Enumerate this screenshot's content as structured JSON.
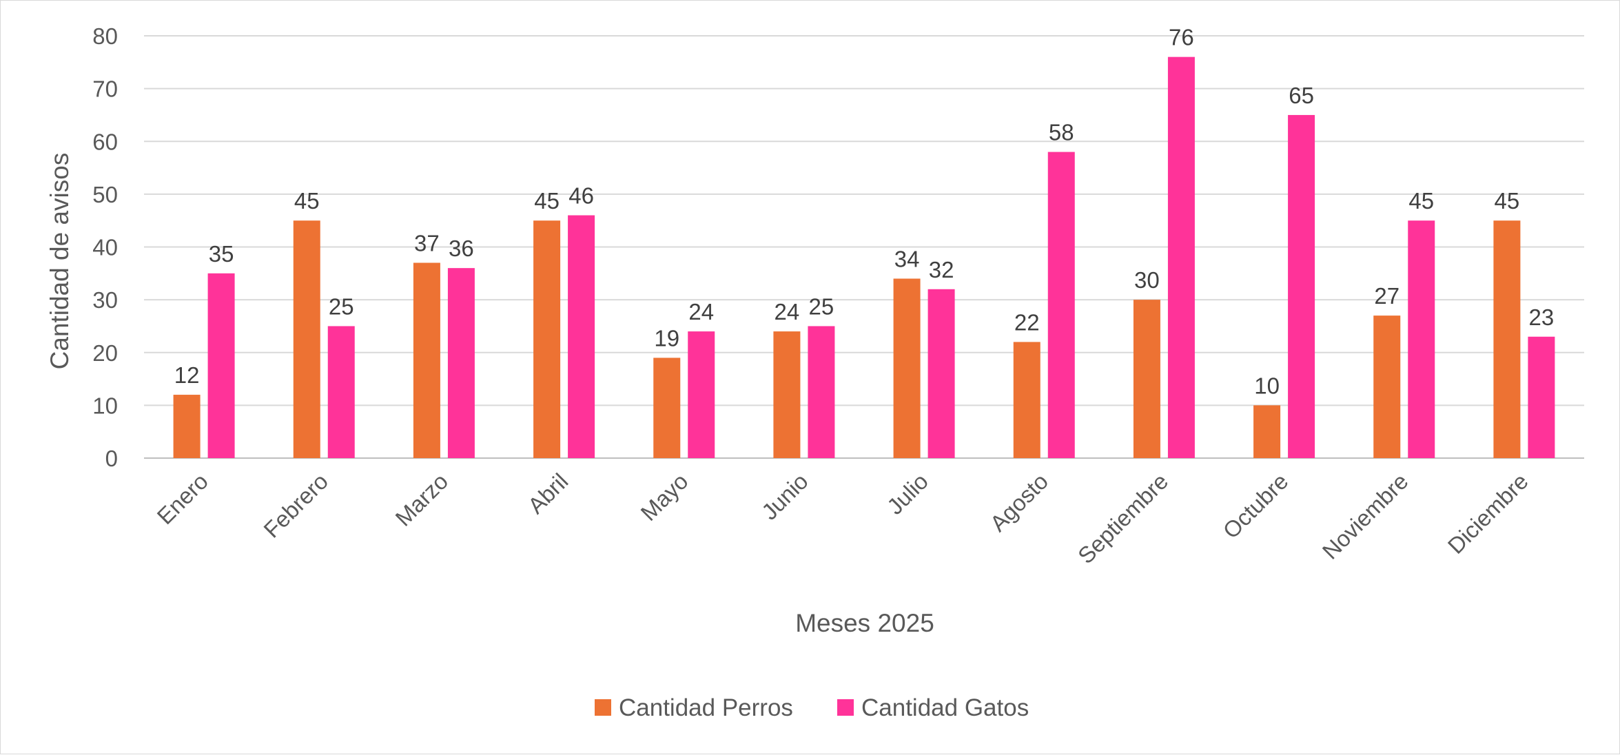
{
  "chart_data": {
    "type": "bar",
    "categories": [
      "Enero",
      "Febrero",
      "Marzo",
      "Abril",
      "Mayo",
      "Junio",
      "Julio",
      "Agosto",
      "Septiembre",
      "Octubre",
      "Noviembre",
      "Diciembre"
    ],
    "series": [
      {
        "name": "Cantidad Perros",
        "color": "#ED7233",
        "values": [
          12,
          45,
          37,
          45,
          19,
          24,
          34,
          22,
          30,
          10,
          27,
          45
        ]
      },
      {
        "name": "Cantidad Gatos",
        "color": "#FF3399",
        "values": [
          35,
          25,
          36,
          46,
          24,
          25,
          32,
          58,
          76,
          65,
          45,
          23
        ]
      }
    ],
    "xlabel": "Meses 2025",
    "ylabel": "Cantidad de avisos",
    "ylim": [
      0,
      80
    ],
    "yticks": [
      0,
      10,
      20,
      30,
      40,
      50,
      60,
      70,
      80
    ],
    "grid": true,
    "legend_position": "bottom",
    "data_labels": true
  }
}
